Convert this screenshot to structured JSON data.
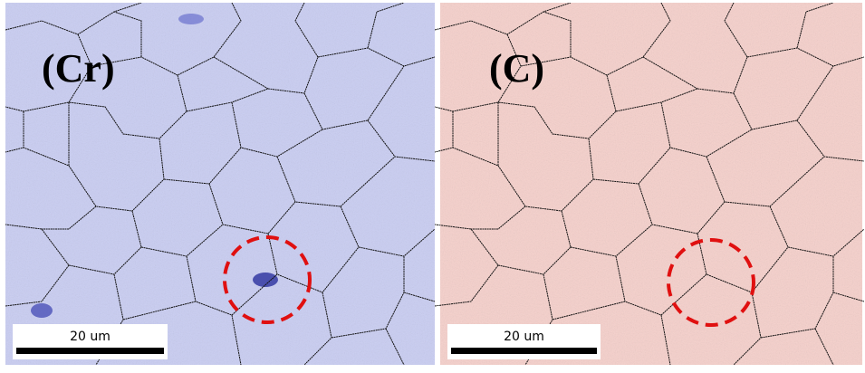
{
  "panels": [
    {
      "label": "(Cr)",
      "scale_bar": "20 um"
    },
    {
      "label": "(C)",
      "scale_bar": "20 um"
    }
  ]
}
